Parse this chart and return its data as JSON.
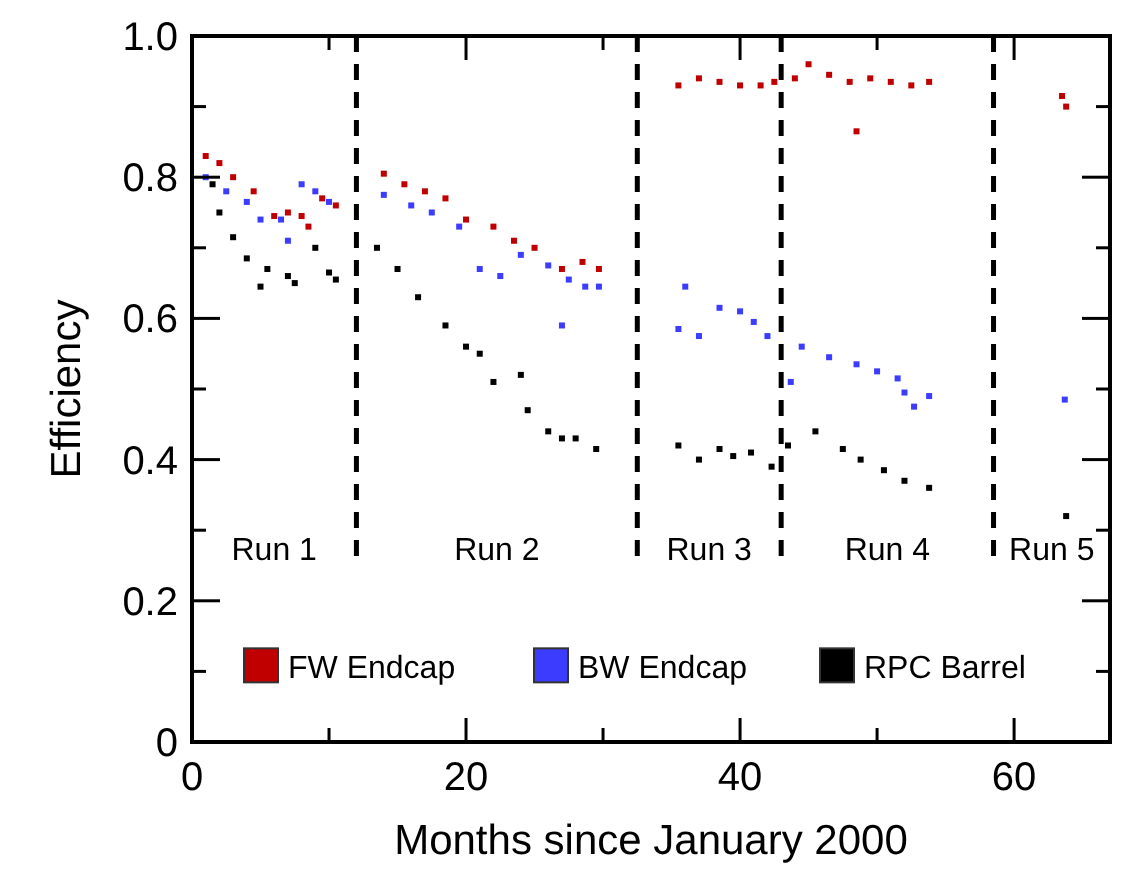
{
  "chart_data": {
    "type": "scatter",
    "xlabel": "Months since January 2000",
    "ylabel": "Efficiency",
    "xlim": [
      0,
      67
    ],
    "ylim": [
      0,
      1
    ],
    "xticks": [
      0,
      {
        "value": 10,
        "label": null
      },
      20,
      {
        "value": 30,
        "label": null
      },
      40,
      {
        "value": 50,
        "label": null
      },
      60
    ],
    "yticks": [
      0,
      {
        "value": 0.1,
        "label": null
      },
      0.2,
      {
        "value": 0.3,
        "label": null
      },
      0.4,
      {
        "value": 0.5,
        "label": null
      },
      0.6,
      {
        "value": 0.7,
        "label": null
      },
      0.8,
      {
        "value": 0.9,
        "label": null
      },
      {
        "value": 1,
        "label": "1.0"
      }
    ],
    "marker": "square",
    "legend": "bottom",
    "grid": false,
    "series": [
      {
        "name": "FW Endcap",
        "color": "#c00000",
        "x": [
          1,
          2,
          3,
          4.5,
          6,
          7,
          8,
          8.5,
          9.5,
          10.5,
          14,
          15.5,
          17,
          18.5,
          20,
          22,
          23.5,
          25,
          27,
          28.5,
          29.7,
          35.5,
          37,
          38.5,
          40,
          41.5,
          42.5,
          44,
          45,
          46.5,
          48,
          48.5,
          49.5,
          51,
          52.5,
          53.8,
          63.5,
          63.8
        ],
        "values": [
          0.83,
          0.82,
          0.8,
          0.78,
          0.745,
          0.75,
          0.745,
          0.73,
          0.77,
          0.76,
          0.805,
          0.79,
          0.78,
          0.77,
          0.74,
          0.73,
          0.71,
          0.7,
          0.67,
          0.68,
          0.67,
          0.93,
          0.94,
          0.935,
          0.93,
          0.93,
          0.935,
          0.94,
          0.96,
          0.945,
          0.935,
          0.865,
          0.94,
          0.935,
          0.93,
          0.935,
          0.915,
          0.9
        ]
      },
      {
        "name": "BW Endcap",
        "color": "#3c3cff",
        "x": [
          1,
          2.5,
          4,
          5,
          6.5,
          7,
          8,
          9,
          10,
          14,
          16,
          17.5,
          19.5,
          21,
          22.5,
          24,
          26,
          27,
          27.5,
          28.7,
          29.7,
          35.5,
          36,
          37,
          38.5,
          40,
          41,
          42,
          43.7,
          44.5,
          46.5,
          48.5,
          50,
          51.5,
          52,
          52.7,
          53.8,
          63.7
        ],
        "values": [
          0.8,
          0.78,
          0.765,
          0.74,
          0.74,
          0.71,
          0.79,
          0.78,
          0.765,
          0.775,
          0.76,
          0.75,
          0.73,
          0.67,
          0.66,
          0.69,
          0.675,
          0.59,
          0.655,
          0.645,
          0.645,
          0.585,
          0.645,
          0.575,
          0.615,
          0.61,
          0.595,
          0.575,
          0.51,
          0.56,
          0.545,
          0.535,
          0.525,
          0.515,
          0.495,
          0.475,
          0.49,
          0.485
        ]
      },
      {
        "name": "RPC Barrel",
        "color": "#000000",
        "x": [
          1.5,
          2,
          3,
          4,
          5,
          5.5,
          7,
          7.5,
          9,
          10,
          10.5,
          13.5,
          15,
          16.5,
          18.5,
          20,
          21,
          22,
          24,
          24.5,
          26,
          27,
          28,
          29.5,
          35.5,
          37,
          38.5,
          39.5,
          40.8,
          42.3,
          43.5,
          45.5,
          47.5,
          48.8,
          50.5,
          52,
          53.8,
          63.8
        ],
        "values": [
          0.79,
          0.75,
          0.715,
          0.685,
          0.645,
          0.67,
          0.66,
          0.65,
          0.7,
          0.665,
          0.655,
          0.7,
          0.67,
          0.63,
          0.59,
          0.56,
          0.55,
          0.51,
          0.52,
          0.47,
          0.44,
          0.43,
          0.43,
          0.415,
          0.42,
          0.4,
          0.415,
          0.405,
          0.41,
          0.39,
          0.42,
          0.44,
          0.415,
          0.4,
          0.385,
          0.37,
          0.36,
          0.32
        ]
      }
    ],
    "ref_lines": [
      {
        "axis": "x",
        "value": 12,
        "line_style": "dashed",
        "color": "#000000"
      },
      {
        "axis": "x",
        "value": 32.5,
        "line_style": "dashed",
        "color": "#000000"
      },
      {
        "axis": "x",
        "value": 43,
        "line_style": "dashed",
        "color": "#000000"
      },
      {
        "axis": "x",
        "value": 58.5,
        "line_style": "dashed",
        "color": "#000000"
      }
    ],
    "annotations": [
      "Run 1",
      "Run 2",
      "Run 3",
      "Run 4",
      "Run 5"
    ]
  }
}
